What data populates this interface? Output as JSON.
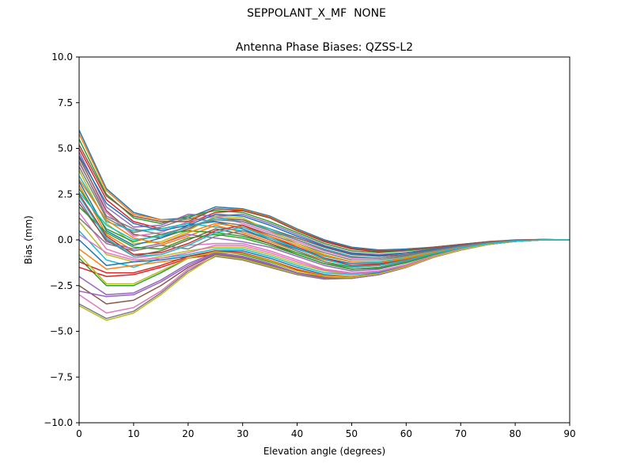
{
  "figure_title": "SEPPOLANT_X_MF  NONE",
  "chart_data": {
    "type": "line",
    "title": "Antenna Phase Biases: QZSS-L2",
    "xlabel": "Elevation angle (degrees)",
    "ylabel": "Bias (mm)",
    "xlim": [
      0,
      90
    ],
    "ylim": [
      -10,
      10
    ],
    "xticks": [
      0,
      10,
      20,
      30,
      40,
      50,
      60,
      70,
      80,
      90
    ],
    "yticks": [
      -10.0,
      -7.5,
      -5.0,
      -2.5,
      0.0,
      2.5,
      5.0,
      7.5,
      10.0
    ],
    "xtick_labels": [
      "0",
      "10",
      "20",
      "30",
      "40",
      "50",
      "60",
      "70",
      "80",
      "90"
    ],
    "ytick_labels": [
      "−10.0",
      "−7.5",
      "−5.0",
      "−2.5",
      "0.0",
      "2.5",
      "5.0",
      "7.5",
      "10.0"
    ],
    "grid": false,
    "legend": "none",
    "palette": [
      "#1f77b4",
      "#ff7f0e",
      "#2ca02c",
      "#d62728",
      "#9467bd",
      "#8c564b",
      "#e377c2",
      "#7f7f7f",
      "#bcbd22",
      "#17becf"
    ],
    "x": [
      0,
      5,
      10,
      15,
      20,
      25,
      30,
      35,
      40,
      45,
      50,
      55,
      60,
      65,
      70,
      75,
      80,
      85,
      90
    ],
    "series": [
      {
        "values": [
          6.0,
          2.8,
          1.5,
          1.1,
          1.2,
          1.8,
          1.7,
          1.3,
          0.6,
          0.0,
          -0.4,
          -0.55,
          -0.5,
          -0.4,
          -0.25,
          -0.1,
          0.0,
          0.02,
          0.0
        ]
      },
      {
        "values": [
          5.8,
          2.7,
          1.4,
          1.1,
          1.1,
          1.7,
          1.65,
          1.25,
          0.55,
          -0.05,
          -0.45,
          -0.6,
          -0.55,
          -0.4,
          -0.25,
          -0.1,
          -0.02,
          0.02,
          0.0
        ]
      },
      {
        "values": [
          5.5,
          2.5,
          1.2,
          0.9,
          1.3,
          1.6,
          1.5,
          1.0,
          0.4,
          -0.2,
          -0.6,
          -0.7,
          -0.6,
          -0.45,
          -0.28,
          -0.12,
          -0.03,
          0.01,
          0.0
        ]
      },
      {
        "values": [
          5.0,
          2.2,
          1.0,
          0.6,
          0.9,
          1.5,
          1.6,
          1.2,
          0.5,
          -0.1,
          -0.5,
          -0.65,
          -0.55,
          -0.42,
          -0.26,
          -0.11,
          -0.02,
          0.02,
          0.0
        ]
      },
      {
        "values": [
          4.8,
          1.8,
          0.7,
          0.8,
          1.4,
          1.3,
          1.4,
          0.9,
          0.3,
          -0.3,
          -0.7,
          -0.8,
          -0.7,
          -0.5,
          -0.3,
          -0.13,
          -0.03,
          0.01,
          0.0
        ]
      },
      {
        "values": [
          4.5,
          1.6,
          0.3,
          0.1,
          0.6,
          1.2,
          1.1,
          0.6,
          0.1,
          -0.4,
          -0.8,
          -0.9,
          -0.8,
          -0.55,
          -0.32,
          -0.14,
          -0.04,
          0.0,
          0.0
        ]
      },
      {
        "values": [
          4.2,
          1.5,
          0.2,
          0.4,
          1.0,
          1.3,
          0.9,
          0.4,
          -0.1,
          -0.6,
          -1.0,
          -1.0,
          -0.85,
          -0.6,
          -0.35,
          -0.15,
          -0.04,
          0.0,
          0.0
        ]
      },
      {
        "values": [
          4.0,
          1.2,
          0.4,
          0.7,
          1.2,
          1.0,
          0.8,
          0.3,
          -0.2,
          -0.7,
          -1.1,
          -1.1,
          -0.9,
          -0.62,
          -0.36,
          -0.16,
          -0.05,
          0.0,
          0.0
        ]
      },
      {
        "values": [
          3.8,
          0.9,
          -0.2,
          -0.1,
          0.5,
          1.3,
          1.2,
          0.5,
          -0.2,
          -0.8,
          -1.2,
          -1.2,
          -0.95,
          -0.65,
          -0.38,
          -0.17,
          -0.05,
          0.0,
          0.0
        ]
      },
      {
        "values": [
          3.5,
          1.0,
          0.5,
          0.6,
          0.9,
          0.7,
          0.5,
          0.1,
          -0.4,
          -0.9,
          -1.2,
          -1.2,
          -1.0,
          -0.68,
          -0.4,
          -0.18,
          -0.06,
          0.0,
          0.0
        ]
      },
      {
        "values": [
          3.2,
          0.5,
          -0.3,
          0.1,
          0.8,
          1.0,
          0.6,
          0.0,
          -0.5,
          -1.0,
          -1.3,
          -1.3,
          -1.05,
          -0.7,
          -0.42,
          -0.19,
          -0.06,
          0.0,
          0.0
        ]
      },
      {
        "values": [
          3.0,
          0.3,
          -0.6,
          -0.3,
          0.2,
          0.8,
          0.4,
          -0.1,
          -0.6,
          -1.1,
          -1.4,
          -1.35,
          -1.1,
          -0.72,
          -0.43,
          -0.19,
          -0.06,
          0.0,
          0.0
        ]
      },
      {
        "values": [
          2.8,
          0.6,
          -0.1,
          0.3,
          0.5,
          0.4,
          0.2,
          -0.2,
          -0.7,
          -1.2,
          -1.5,
          -1.4,
          -1.15,
          -0.75,
          -0.45,
          -0.2,
          -0.07,
          0.0,
          0.0
        ]
      },
      {
        "values": [
          2.5,
          0.2,
          -0.8,
          -0.7,
          -0.2,
          0.5,
          0.8,
          0.2,
          -0.4,
          -1.0,
          -1.4,
          -1.35,
          -1.1,
          -0.73,
          -0.44,
          -0.2,
          -0.07,
          0.0,
          0.0
        ]
      },
      {
        "values": [
          2.2,
          -0.1,
          -0.5,
          -0.2,
          0.3,
          0.1,
          -0.1,
          -0.4,
          -0.9,
          -1.4,
          -1.7,
          -1.6,
          -1.25,
          -0.8,
          -0.48,
          -0.21,
          -0.07,
          0.0,
          0.0
        ]
      },
      {
        "values": [
          2.0,
          0.0,
          -0.9,
          -0.6,
          0.0,
          0.6,
          0.3,
          -0.2,
          -0.8,
          -1.3,
          -1.6,
          -1.5,
          -1.2,
          -0.78,
          -0.47,
          -0.21,
          -0.07,
          0.0,
          0.0
        ]
      },
      {
        "values": [
          1.5,
          -0.5,
          -1.0,
          -0.8,
          -0.3,
          -0.2,
          -0.2,
          -0.6,
          -1.1,
          -1.6,
          -1.8,
          -1.7,
          -1.35,
          -0.85,
          -0.5,
          -0.22,
          -0.08,
          0.0,
          0.0
        ]
      },
      {
        "values": [
          1.2,
          -0.2,
          -0.6,
          -0.3,
          -0.5,
          0.2,
          0.5,
          0.0,
          -0.6,
          -1.2,
          -1.6,
          -1.5,
          -1.2,
          -0.78,
          -0.46,
          -0.2,
          -0.07,
          0.0,
          0.0
        ]
      },
      {
        "values": [
          1.0,
          -0.8,
          -1.2,
          -0.9,
          -0.6,
          -0.4,
          -0.4,
          -0.8,
          -1.3,
          -1.7,
          -1.9,
          -1.75,
          -1.4,
          -0.88,
          -0.52,
          -0.23,
          -0.08,
          0.0,
          0.0
        ]
      },
      {
        "values": [
          0.5,
          -1.1,
          -1.5,
          -1.0,
          -0.8,
          -0.5,
          -0.5,
          -0.9,
          -1.4,
          -1.8,
          -1.9,
          -1.75,
          -1.4,
          -0.88,
          -0.52,
          -0.23,
          -0.08,
          0.0,
          0.0
        ]
      },
      {
        "values": [
          0.0,
          -1.4,
          -1.2,
          -1.1,
          -0.9,
          -0.6,
          -0.6,
          -1.0,
          -1.5,
          -1.9,
          -2.0,
          -1.8,
          -1.45,
          -0.9,
          -0.53,
          -0.23,
          -0.08,
          0.0,
          0.0
        ]
      },
      {
        "values": [
          -0.5,
          -1.6,
          -1.4,
          -1.2,
          -1.0,
          -0.7,
          -0.7,
          -1.1,
          -1.6,
          -1.95,
          -2.0,
          -1.85,
          -1.45,
          -0.92,
          -0.54,
          -0.24,
          -0.08,
          0.0,
          0.0
        ]
      },
      {
        "values": [
          -1.0,
          -2.5,
          -2.5,
          -1.8,
          -1.0,
          -0.6,
          -0.8,
          -1.2,
          -1.7,
          -2.0,
          -2.05,
          -1.85,
          -1.5,
          -0.93,
          -0.55,
          -0.24,
          -0.08,
          0.0,
          0.0
        ]
      },
      {
        "values": [
          -1.5,
          -2.0,
          -1.9,
          -1.5,
          -1.0,
          -0.8,
          -0.9,
          -1.3,
          -1.8,
          -2.05,
          -2.1,
          -1.9,
          -1.5,
          -0.94,
          -0.55,
          -0.24,
          -0.08,
          0.0,
          0.0
        ]
      },
      {
        "values": [
          -2.0,
          -3.0,
          -2.9,
          -2.2,
          -1.3,
          -0.7,
          -0.9,
          -1.3,
          -1.8,
          -2.1,
          -2.1,
          -1.9,
          -1.5,
          -0.95,
          -0.56,
          -0.25,
          -0.08,
          0.0,
          0.0
        ]
      },
      {
        "values": [
          -2.5,
          -3.5,
          -3.3,
          -2.5,
          -1.5,
          -0.8,
          -1.0,
          -1.4,
          -1.85,
          -2.1,
          -2.1,
          -1.9,
          -1.5,
          -0.95,
          -0.56,
          -0.25,
          -0.08,
          0.0,
          0.0
        ]
      },
      {
        "values": [
          -3.0,
          -4.0,
          -3.7,
          -2.8,
          -1.6,
          -0.9,
          -1.1,
          -1.5,
          -1.9,
          -2.1,
          -2.1,
          -1.9,
          -1.5,
          -0.95,
          -0.56,
          -0.25,
          -0.08,
          0.0,
          0.0
        ]
      },
      {
        "values": [
          -3.5,
          -4.3,
          -3.9,
          -2.9,
          -1.7,
          -0.9,
          -1.1,
          -1.5,
          -1.9,
          -2.15,
          -2.1,
          -1.9,
          -1.5,
          -0.95,
          -0.56,
          -0.25,
          -0.08,
          0.0,
          0.0
        ]
      },
      {
        "values": [
          -3.6,
          -4.4,
          -4.0,
          -3.0,
          -1.8,
          -0.85,
          -1.05,
          -1.45,
          -1.85,
          -2.1,
          -2.05,
          -1.85,
          -1.48,
          -0.94,
          -0.55,
          -0.24,
          -0.08,
          0.0,
          0.0
        ]
      },
      {
        "values": [
          2.6,
          0.8,
          0.0,
          0.2,
          0.7,
          1.2,
          1.0,
          0.6,
          0.0,
          -0.5,
          -0.9,
          -1.0,
          -0.85,
          -0.6,
          -0.35,
          -0.15,
          -0.05,
          0.0,
          0.0
        ]
      },
      {
        "values": [
          4.6,
          2.0,
          0.9,
          0.5,
          0.8,
          1.4,
          1.3,
          0.8,
          0.2,
          -0.35,
          -0.75,
          -0.85,
          -0.72,
          -0.52,
          -0.31,
          -0.13,
          -0.04,
          0.01,
          0.0
        ]
      },
      {
        "values": [
          3.3,
          1.1,
          0.1,
          -0.2,
          0.4,
          0.9,
          0.7,
          0.2,
          -0.3,
          -0.85,
          -1.2,
          -1.25,
          -1.02,
          -0.69,
          -0.41,
          -0.18,
          -0.06,
          0.0,
          0.0
        ]
      },
      {
        "values": [
          1.8,
          0.4,
          -0.4,
          -0.5,
          0.1,
          0.3,
          0.1,
          -0.3,
          -0.8,
          -1.3,
          -1.6,
          -1.55,
          -1.25,
          -0.8,
          -0.48,
          -0.21,
          -0.07,
          0.0,
          0.0
        ]
      },
      {
        "values": [
          -1.2,
          -1.8,
          -1.8,
          -1.4,
          -0.9,
          -0.6,
          -0.7,
          -1.15,
          -1.65,
          -2.0,
          -2.05,
          -1.85,
          -1.48,
          -0.93,
          -0.55,
          -0.24,
          -0.08,
          0.0,
          0.0
        ]
      },
      {
        "values": [
          -2.8,
          -3.1,
          -3.0,
          -2.3,
          -1.4,
          -0.75,
          -0.95,
          -1.35,
          -1.82,
          -2.1,
          -2.1,
          -1.9,
          -1.5,
          -0.95,
          -0.56,
          -0.25,
          -0.08,
          0.0,
          0.0
        ]
      },
      {
        "values": [
          5.2,
          2.4,
          1.3,
          1.0,
          1.0,
          1.7,
          1.6,
          1.2,
          0.5,
          -0.05,
          -0.45,
          -0.6,
          -0.55,
          -0.4,
          -0.25,
          -0.1,
          -0.02,
          0.02,
          0.0
        ]
      },
      {
        "values": [
          0.3,
          -0.7,
          -1.1,
          -1.0,
          -0.7,
          -0.3,
          -0.3,
          -0.7,
          -1.2,
          -1.65,
          -1.85,
          -1.72,
          -1.38,
          -0.87,
          -0.51,
          -0.22,
          -0.08,
          0.0,
          0.0
        ]
      },
      {
        "values": [
          4.3,
          1.3,
          0.6,
          0.3,
          0.7,
          1.1,
          1.0,
          0.5,
          0.0,
          -0.55,
          -0.95,
          -1.0,
          -0.85,
          -0.6,
          -0.35,
          -0.15,
          -0.04,
          0.0,
          0.0
        ]
      },
      {
        "values": [
          -0.8,
          -2.4,
          -2.4,
          -1.7,
          -1.0,
          -0.65,
          -0.75,
          -1.15,
          -1.7,
          -2.0,
          -2.05,
          -1.85,
          -1.48,
          -0.93,
          -0.55,
          -0.24,
          -0.08,
          0.0,
          0.0
        ]
      },
      {
        "values": [
          2.4,
          0.1,
          -0.9,
          -0.8,
          -0.3,
          0.4,
          0.7,
          0.1,
          -0.45,
          -1.05,
          -1.45,
          -1.4,
          -1.12,
          -0.74,
          -0.44,
          -0.2,
          -0.07,
          0.0,
          0.0
        ]
      }
    ]
  }
}
